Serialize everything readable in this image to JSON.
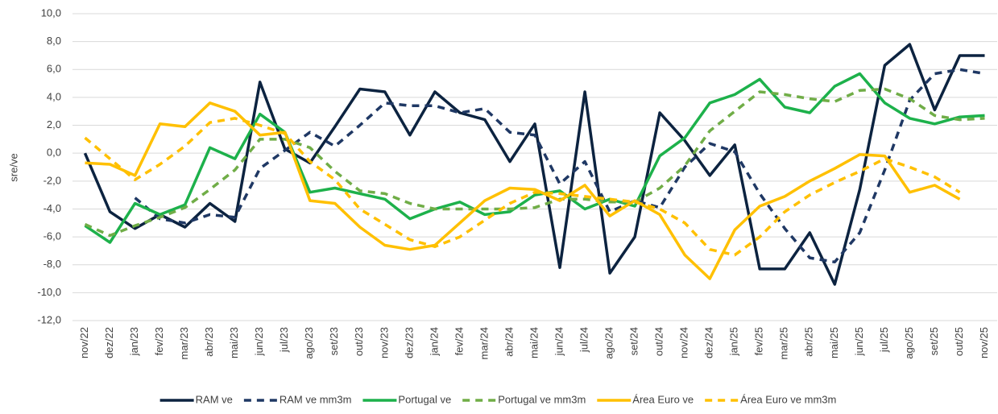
{
  "chart_data": {
    "type": "line",
    "y_label": "sre/ve",
    "categories": [
      "nov/22",
      "dez/22",
      "jan/23",
      "fev/23",
      "mar/23",
      "abr/23",
      "mai/23",
      "jun/23",
      "jul/23",
      "ago/23",
      "set/23",
      "out/23",
      "nov/23",
      "dez/23",
      "jan/24",
      "fev/24",
      "mar/24",
      "abr/24",
      "mai/24",
      "jun/24",
      "jul/24",
      "ago/24",
      "set/24",
      "out/24",
      "nov/24",
      "dez/24",
      "jan/25",
      "fev/25",
      "mar/25",
      "abr/25",
      "mai/25",
      "jun/25",
      "jul/25",
      "ago/25",
      "set/25",
      "out/25",
      "nov/25"
    ],
    "ylim": [
      -12,
      10
    ],
    "yticks": [
      {
        "value": -12,
        "label": "-12,0"
      },
      {
        "value": -10,
        "label": "-10,0"
      },
      {
        "value": -8,
        "label": "-8,0"
      },
      {
        "value": -6,
        "label": "-6,0"
      },
      {
        "value": -4,
        "label": "-4,0"
      },
      {
        "value": -2,
        "label": "-2,0"
      },
      {
        "value": 0,
        "label": "0,0"
      },
      {
        "value": 2,
        "label": "2,0"
      },
      {
        "value": 4,
        "label": "4,0"
      },
      {
        "value": 6,
        "label": "6,0"
      },
      {
        "value": 8,
        "label": "8,0"
      },
      {
        "value": 10,
        "label": "10,0"
      }
    ],
    "grid": true,
    "legend": "bottom",
    "series": [
      {
        "name": "RAM ve",
        "color": "#0c2340",
        "dashed": false,
        "values": [
          0.0,
          -4.2,
          -5.4,
          -4.4,
          -5.3,
          -3.6,
          -4.9,
          5.1,
          0.3,
          -0.7,
          1.9,
          4.6,
          4.4,
          1.3,
          4.4,
          2.9,
          2.4,
          -0.6,
          2.1,
          -8.2,
          4.4,
          -8.6,
          -6.0,
          2.9,
          0.9,
          -1.6,
          0.6,
          -8.3,
          -8.3,
          -5.7,
          -9.4,
          -2.6,
          6.3,
          7.8,
          3.1,
          7.0,
          7.0
        ]
      },
      {
        "name": "RAM ve mm3m",
        "color": "#1f3864",
        "dashed": true,
        "values": [
          null,
          null,
          -3.2,
          -4.7,
          -5.0,
          -4.4,
          -4.6,
          -1.1,
          0.2,
          1.5,
          0.5,
          2.0,
          3.6,
          3.4,
          3.4,
          2.9,
          3.2,
          1.5,
          1.3,
          -2.2,
          -0.6,
          -4.2,
          -3.4,
          -3.9,
          -1.0,
          0.7,
          0.1,
          -2.9,
          -5.4,
          -7.5,
          -7.8,
          -5.7,
          -1.2,
          3.8,
          5.7,
          6.0,
          5.7
        ]
      },
      {
        "name": "Portugal ve",
        "color": "#1db14b",
        "dashed": false,
        "values": [
          -5.2,
          -6.4,
          -3.6,
          -4.4,
          -3.7,
          0.4,
          -0.4,
          2.8,
          1.5,
          -2.8,
          -2.5,
          -2.9,
          -3.3,
          -4.7,
          -4.0,
          -3.5,
          -4.4,
          -4.2,
          -3.0,
          -2.7,
          -4.0,
          -3.3,
          -3.8,
          -0.2,
          1.1,
          3.6,
          4.2,
          5.3,
          3.3,
          2.9,
          4.8,
          5.7,
          3.6,
          2.5,
          2.1,
          2.6,
          2.7
        ]
      },
      {
        "name": "Portugal ve mm3m",
        "color": "#70ad47",
        "dashed": true,
        "values": [
          -5.1,
          -5.9,
          -5.2,
          -4.6,
          -3.9,
          -2.6,
          -1.2,
          1.0,
          1.0,
          0.4,
          -1.3,
          -2.7,
          -2.9,
          -3.6,
          -4.0,
          -4.0,
          -4.0,
          -4.0,
          -3.9,
          -3.3,
          -3.3,
          -3.5,
          -3.5,
          -2.5,
          -0.9,
          1.6,
          3.0,
          4.4,
          4.2,
          3.9,
          3.7,
          4.5,
          4.6,
          3.9,
          2.7,
          2.4,
          2.5
        ]
      },
      {
        "name": "Área Euro ve",
        "color": "#ffc000",
        "dashed": false,
        "values": [
          -0.7,
          -0.8,
          -1.6,
          2.1,
          1.9,
          3.6,
          3.0,
          1.3,
          1.5,
          -3.4,
          -3.6,
          -5.3,
          -6.6,
          -6.9,
          -6.6,
          -5.0,
          -3.4,
          -2.5,
          -2.6,
          -3.4,
          -2.3,
          -4.5,
          -3.4,
          -4.4,
          -7.3,
          -9.0,
          -5.5,
          -3.8,
          -3.1,
          -2.0,
          -1.1,
          -0.1,
          -0.2,
          -2.8,
          -2.3,
          -3.3,
          null
        ]
      },
      {
        "name": "Área Euro ve mm3m",
        "color": "#ffc000",
        "dashed": true,
        "values": [
          1.1,
          -0.4,
          -1.9,
          -0.8,
          0.5,
          2.2,
          2.5,
          2.0,
          1.4,
          -0.6,
          -1.9,
          -4.0,
          -5.1,
          -6.2,
          -6.7,
          -6.0,
          -4.8,
          -3.6,
          -2.8,
          -2.9,
          -3.1,
          -3.3,
          -3.5,
          -4.0,
          -5.0,
          -6.9,
          -7.3,
          -6.0,
          -4.2,
          -3.0,
          -2.1,
          -1.3,
          -0.4,
          -1.0,
          -1.7,
          -2.8,
          null
        ]
      }
    ]
  }
}
